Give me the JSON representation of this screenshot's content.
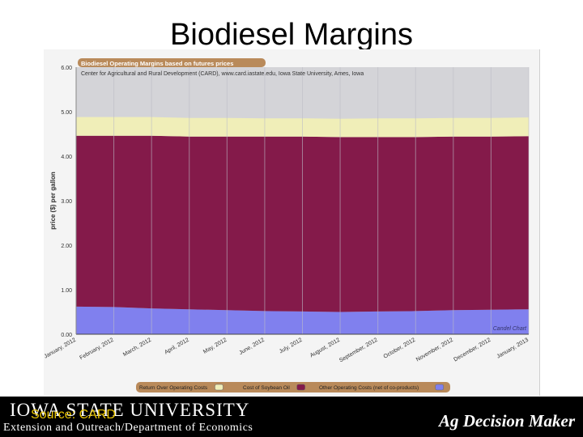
{
  "slide": {
    "title": "Biodiesel Margins"
  },
  "chart_data": {
    "type": "area",
    "title": "Biodiesel Operating Margins based on futures prices",
    "subtitle": "Center for Agricultural and Rural Development (CARD), www.card.iastate.edu, Iowa State University, Ames, Iowa",
    "xlabel": "",
    "ylabel": "price ($) per gallon",
    "ylim": [
      0,
      6
    ],
    "yticks": [
      "0.00",
      "1.00",
      "2.00",
      "3.00",
      "4.00",
      "5.00",
      "6.00"
    ],
    "categories": [
      "January, 2012",
      "February, 2012",
      "March, 2012",
      "April, 2012",
      "May, 2012",
      "June, 2012",
      "July, 2012",
      "August, 2012",
      "September, 2012",
      "October, 2012",
      "November, 2012",
      "December, 2012",
      "January, 2013"
    ],
    "stacked": true,
    "grid": true,
    "legend_position": "bottom",
    "watermark": "Candel Chart",
    "series": [
      {
        "name": "Other Operating Costs (net of co-products)",
        "color": "#8080ee",
        "values": [
          0.62,
          0.61,
          0.58,
          0.56,
          0.54,
          0.52,
          0.51,
          0.5,
          0.51,
          0.52,
          0.54,
          0.55,
          0.56
        ]
      },
      {
        "name": "Cost of Soybean Oil",
        "color": "#841a4a",
        "values": [
          3.84,
          3.85,
          3.88,
          3.88,
          3.9,
          3.92,
          3.93,
          3.93,
          3.92,
          3.91,
          3.9,
          3.89,
          3.89
        ]
      },
      {
        "name": "Return Over Operating Costs",
        "color": "#f0eeb8",
        "values": [
          0.42,
          0.42,
          0.42,
          0.42,
          0.42,
          0.41,
          0.41,
          0.41,
          0.42,
          0.42,
          0.42,
          0.42,
          0.42
        ]
      }
    ],
    "legend_order": [
      "Return Over Operating Costs",
      "Cost of Soybean Oil",
      "Other Operating Costs (net of co-products)"
    ],
    "upper_band_color": "#d4d4d8"
  },
  "footer": {
    "university": "IOWA STATE UNIVERSITY",
    "source": "Source: CARD",
    "department": "Extension and Outreach/Department of Economics",
    "brand": "Ag Decision Maker"
  }
}
